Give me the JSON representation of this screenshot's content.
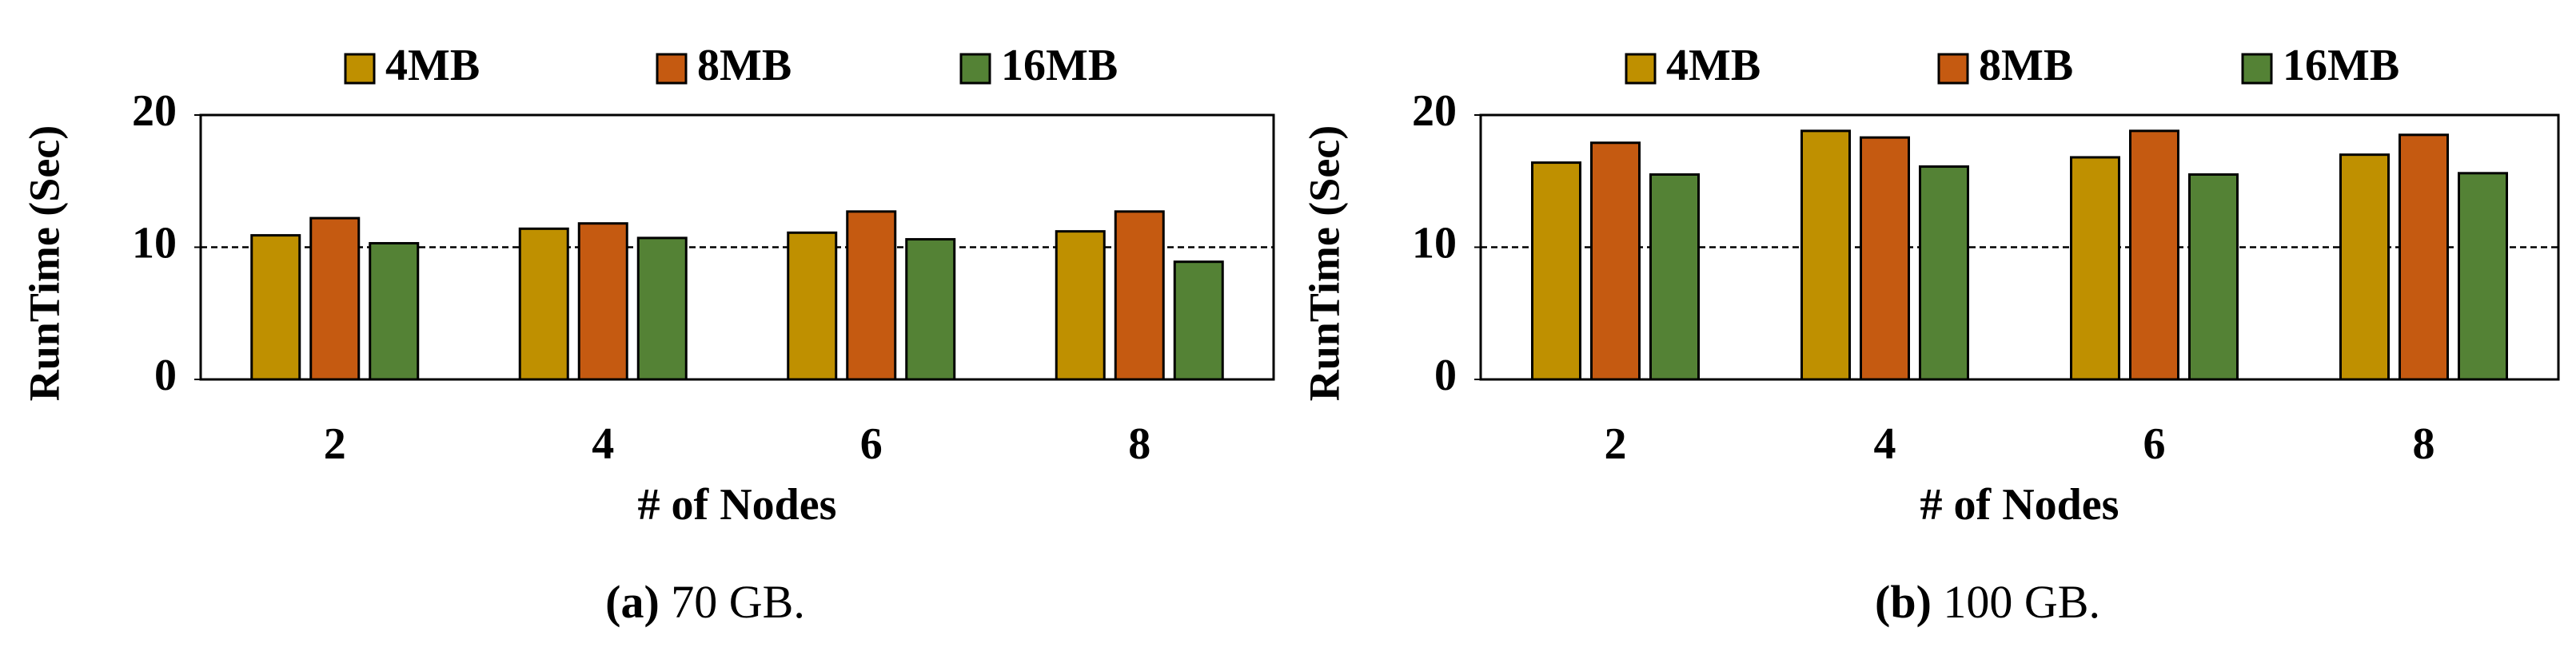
{
  "chart_data": [
    {
      "type": "bar",
      "ylabel": "RunTime (Sec)",
      "xlabel": "# of Nodes",
      "caption_label": "(a)",
      "caption": "70 GB.",
      "categories": [
        "2",
        "4",
        "6",
        "8"
      ],
      "series": [
        {
          "name": "4MB",
          "color": "#bf9000",
          "values": [
            10.9,
            11.4,
            11.1,
            11.2
          ]
        },
        {
          "name": "8MB",
          "color": "#c55a11",
          "values": [
            12.2,
            11.8,
            12.7,
            12.7
          ]
        },
        {
          "name": "16MB",
          "color": "#548235",
          "values": [
            10.3,
            10.7,
            10.6,
            8.9
          ]
        }
      ],
      "ylim": [
        0,
        20
      ],
      "yticks": [
        0,
        10,
        20
      ],
      "reference_line": 10
    },
    {
      "type": "bar",
      "ylabel": "RunTime (Sec)",
      "xlabel": "# of Nodes",
      "caption_label": "(b)",
      "caption": "100 GB.",
      "categories": [
        "2",
        "4",
        "6",
        "8"
      ],
      "series": [
        {
          "name": "4MB",
          "color": "#bf9000",
          "values": [
            16.4,
            18.8,
            16.8,
            17.0
          ]
        },
        {
          "name": "8MB",
          "color": "#c55a11",
          "values": [
            17.9,
            18.3,
            18.8,
            18.5
          ]
        },
        {
          "name": "16MB",
          "color": "#548235",
          "values": [
            15.5,
            16.1,
            15.5,
            15.6
          ]
        }
      ],
      "ylim": [
        0,
        20
      ],
      "yticks": [
        0,
        10,
        20
      ],
      "reference_line": 10
    }
  ]
}
